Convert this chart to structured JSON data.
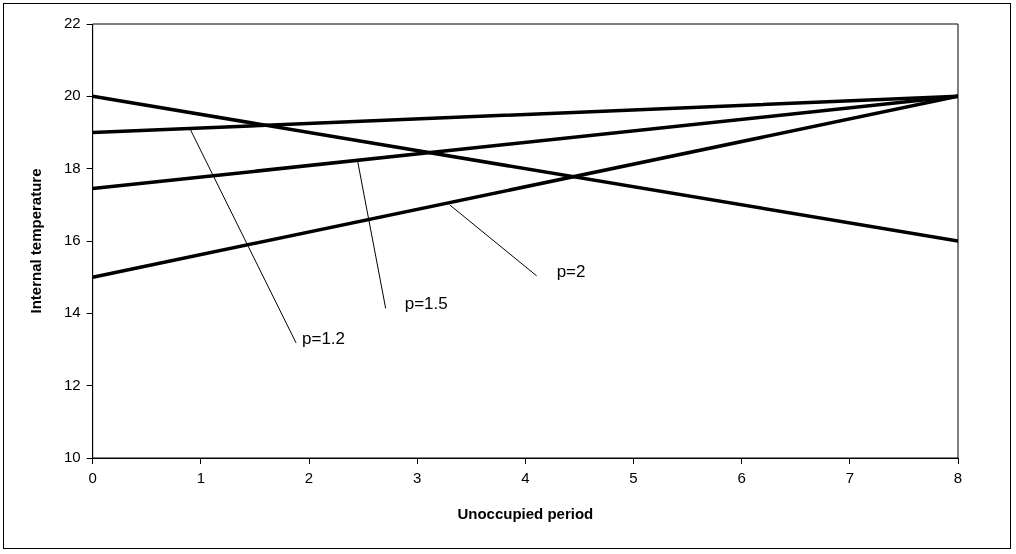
{
  "chart_data": {
    "type": "line",
    "xlabel": "Unoccupied period",
    "ylabel": "Internal temperature",
    "x": [
      0,
      8
    ],
    "xlim": [
      0,
      8
    ],
    "xticks": [
      0,
      1,
      2,
      3,
      4,
      5,
      6,
      7,
      8
    ],
    "ylim": [
      10,
      22
    ],
    "yticks": [
      10,
      12,
      14,
      16,
      18,
      20,
      22
    ],
    "grid": false,
    "legend": false,
    "marker": "none",
    "line_style": "solid",
    "series": [
      {
        "color": "#000000",
        "values": [
          20,
          16
        ]
      },
      {
        "color": "#000000",
        "values": [
          19,
          20
        ]
      },
      {
        "color": "#000000",
        "values": [
          17.45,
          20
        ]
      },
      {
        "color": "#000000",
        "values": [
          15,
          20
        ]
      }
    ],
    "annotations": [
      {
        "text": "p=1.2",
        "x": 0.9,
        "y": 19.1
      },
      {
        "text": "p=1.5",
        "x": 2.45,
        "y": 18.2
      },
      {
        "text": "p=2",
        "x": 3.3,
        "y": 17
      }
    ]
  }
}
